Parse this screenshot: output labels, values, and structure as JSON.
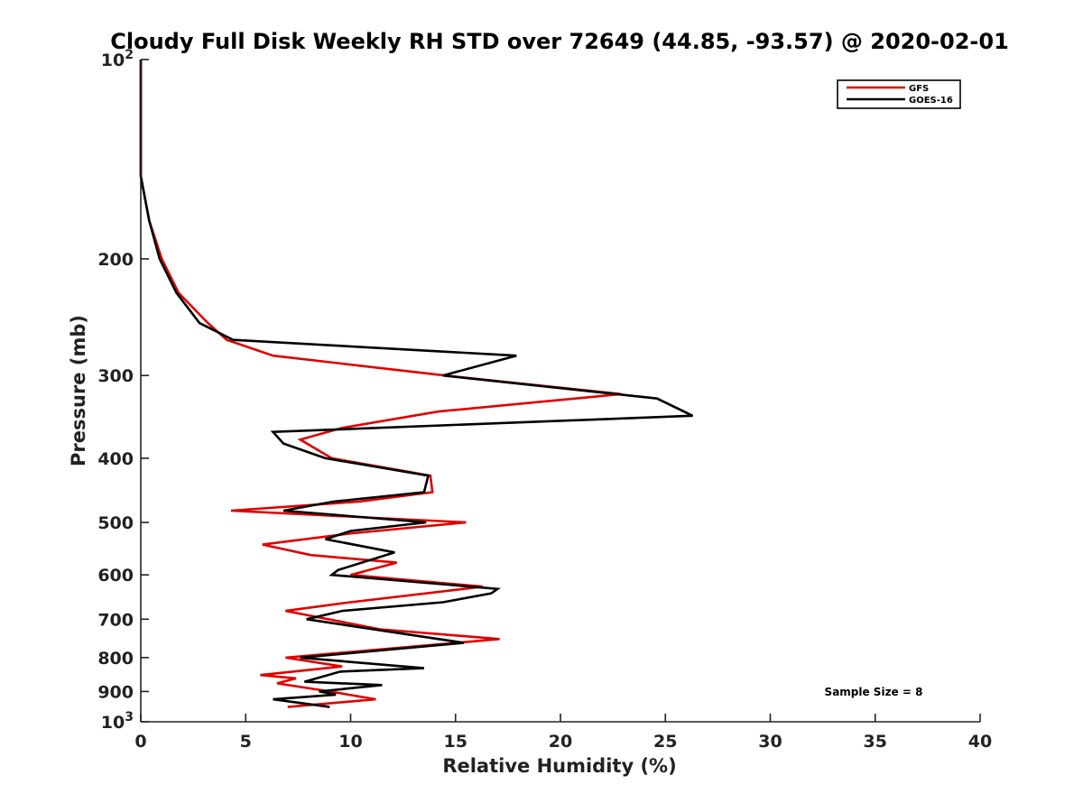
{
  "chart_data": {
    "type": "line",
    "title": "Cloudy Full Disk Weekly RH STD over 72649 (44.85, -93.57) @ 2020-02-01",
    "xlabel": "Relative Humidity (%)",
    "ylabel": "Pressure (mb)",
    "xlim": [
      0,
      40
    ],
    "ylim": [
      100,
      1000
    ],
    "y_scale": "log",
    "y_reversed": true,
    "grid": false,
    "legend_position": "top-right",
    "x_ticks": [
      "0",
      "5",
      "10",
      "15",
      "20",
      "25",
      "30",
      "35",
      "40"
    ],
    "y_ticks": [
      {
        "value": 100,
        "base": "10",
        "exp": "2"
      },
      {
        "value": 200,
        "label": "200"
      },
      {
        "value": 300,
        "label": "300"
      },
      {
        "value": 400,
        "label": "400"
      },
      {
        "value": 500,
        "label": "500"
      },
      {
        "value": 600,
        "label": "600"
      },
      {
        "value": 700,
        "label": "700"
      },
      {
        "value": 800,
        "label": "800"
      },
      {
        "value": 900,
        "label": "900"
      },
      {
        "value": 1000,
        "base": "10",
        "exp": "3"
      }
    ],
    "series": [
      {
        "name": "GFS",
        "color": "#e00000",
        "points": [
          [
            0.0,
            100
          ],
          [
            0.0,
            125
          ],
          [
            0.0,
            150
          ],
          [
            0.4,
            175
          ],
          [
            1.0,
            200
          ],
          [
            1.8,
            225
          ],
          [
            3.2,
            250
          ],
          [
            4.1,
            265
          ],
          [
            6.3,
            280
          ],
          [
            14.5,
            300
          ],
          [
            22.9,
            320
          ],
          [
            14.2,
            340
          ],
          [
            9.6,
            360
          ],
          [
            7.6,
            375
          ],
          [
            9.1,
            400
          ],
          [
            13.8,
            425
          ],
          [
            13.9,
            450
          ],
          [
            10.4,
            465
          ],
          [
            4.3,
            480
          ],
          [
            15.5,
            500
          ],
          [
            9.9,
            520
          ],
          [
            5.8,
            540
          ],
          [
            8.1,
            560
          ],
          [
            12.2,
            575
          ],
          [
            10.0,
            600
          ],
          [
            16.3,
            625
          ],
          [
            10.0,
            660
          ],
          [
            6.9,
            680
          ],
          [
            11.4,
            725
          ],
          [
            17.1,
            750
          ],
          [
            6.9,
            800
          ],
          [
            9.6,
            825
          ],
          [
            5.7,
            850
          ],
          [
            7.4,
            860
          ],
          [
            6.5,
            875
          ],
          [
            9.0,
            900
          ],
          [
            11.2,
            925
          ],
          [
            7.0,
            950
          ]
        ]
      },
      {
        "name": "GOES-16",
        "color": "#000000",
        "points": [
          [
            0.0,
            100
          ],
          [
            0.0,
            125
          ],
          [
            0.0,
            150
          ],
          [
            0.4,
            175
          ],
          [
            0.9,
            200
          ],
          [
            1.7,
            225
          ],
          [
            2.8,
            250
          ],
          [
            4.4,
            265
          ],
          [
            17.9,
            280
          ],
          [
            14.4,
            300
          ],
          [
            24.6,
            325
          ],
          [
            26.3,
            345
          ],
          [
            6.3,
            365
          ],
          [
            6.8,
            380
          ],
          [
            8.8,
            400
          ],
          [
            13.7,
            425
          ],
          [
            13.5,
            450
          ],
          [
            9.2,
            465
          ],
          [
            6.8,
            480
          ],
          [
            13.6,
            500
          ],
          [
            10.0,
            515
          ],
          [
            8.8,
            530
          ],
          [
            12.1,
            555
          ],
          [
            9.4,
            590
          ],
          [
            9.1,
            600
          ],
          [
            17.0,
            630
          ],
          [
            16.7,
            640
          ],
          [
            14.4,
            660
          ],
          [
            9.6,
            680
          ],
          [
            7.9,
            700
          ],
          [
            15.4,
            760
          ],
          [
            7.6,
            800
          ],
          [
            13.5,
            830
          ],
          [
            9.5,
            840
          ],
          [
            7.8,
            870
          ],
          [
            11.5,
            880
          ],
          [
            8.5,
            900
          ],
          [
            9.3,
            910
          ],
          [
            6.3,
            925
          ],
          [
            9.0,
            950
          ]
        ]
      }
    ],
    "annotations": [
      "Sample Size = 8"
    ]
  }
}
